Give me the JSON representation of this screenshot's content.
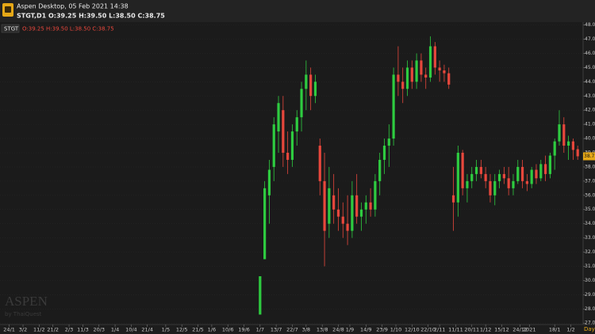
{
  "window": {
    "title": "Aspen Desktop, 05 Feb 2021 14:38",
    "info": "STGT,D1  O:39.25 H:39.50 L:38.50 C:38.75"
  },
  "watermark": {
    "brand": "ASPEN",
    "by": "by ThaiQuest"
  },
  "chart_data": {
    "type": "candlestick",
    "symbol": "STGT",
    "ohlc_text": "O:39.25 H:39.50 L:38.50 C:38.75",
    "timeframe": "Day",
    "up_color": "#2ecc40",
    "down_color": "#e8473c",
    "xlim": [
      0,
      253
    ],
    "xticks": [
      {
        "value": 4,
        "label": "24/1"
      },
      {
        "value": 10,
        "label": "3/2"
      },
      {
        "value": 17,
        "label": "11/2"
      },
      {
        "value": 23,
        "label": "21/2"
      },
      {
        "value": 30,
        "label": "2/3"
      },
      {
        "value": 36,
        "label": "11/3"
      },
      {
        "value": 43,
        "label": "20/3"
      },
      {
        "value": 50,
        "label": "1/4"
      },
      {
        "value": 57,
        "label": "10/4"
      },
      {
        "value": 64,
        "label": "21/4"
      },
      {
        "value": 72,
        "label": "1/5"
      },
      {
        "value": 79,
        "label": "12/5"
      },
      {
        "value": 86,
        "label": "21/5"
      },
      {
        "value": 92,
        "label": "1/6"
      },
      {
        "value": 99,
        "label": "10/6"
      },
      {
        "value": 106,
        "label": "19/6"
      },
      {
        "value": 113,
        "label": "1/7"
      },
      {
        "value": 120,
        "label": "13/7"
      },
      {
        "value": 127,
        "label": "22/7"
      },
      {
        "value": 133,
        "label": "3/8"
      },
      {
        "value": 140,
        "label": "13/8"
      },
      {
        "value": 147,
        "label": "24/8"
      },
      {
        "value": 152,
        "label": "1/9"
      },
      {
        "value": 159,
        "label": "14/9"
      },
      {
        "value": 166,
        "label": "23/9"
      },
      {
        "value": 172,
        "label": "1/10"
      },
      {
        "value": 179,
        "label": "12/10"
      },
      {
        "value": 186,
        "label": "22/10"
      },
      {
        "value": 191,
        "label": "2/11"
      },
      {
        "value": 198,
        "label": "11/11"
      },
      {
        "value": 205,
        "label": "20/11"
      },
      {
        "value": 211,
        "label": "1/12"
      },
      {
        "value": 218,
        "label": "15/12"
      },
      {
        "value": 226,
        "label": "24/12"
      },
      {
        "value": 230,
        "label": "2021"
      },
      {
        "value": 241,
        "label": "18/1"
      },
      {
        "value": 248,
        "label": "1/2"
      }
    ],
    "ylim": [
      26.9,
      48.2
    ],
    "yticks": [
      {
        "value": 27,
        "label": "27.00"
      },
      {
        "value": 28,
        "label": "28.00"
      },
      {
        "value": 29,
        "label": "29.00"
      },
      {
        "value": 30,
        "label": "30.00"
      },
      {
        "value": 31,
        "label": "31.00"
      },
      {
        "value": 32,
        "label": "32.00"
      },
      {
        "value": 33,
        "label": "33.00"
      },
      {
        "value": 34,
        "label": "34.00"
      },
      {
        "value": 35,
        "label": "35.00"
      },
      {
        "value": 36,
        "label": "36.00"
      },
      {
        "value": 37,
        "label": "37.00"
      },
      {
        "value": 38,
        "label": "38.00"
      },
      {
        "value": 39,
        "label": "39.00"
      },
      {
        "value": 40,
        "label": "40.00"
      },
      {
        "value": 41,
        "label": "41.00"
      },
      {
        "value": 42,
        "label": "42.00"
      },
      {
        "value": 43,
        "label": "43.00"
      },
      {
        "value": 44,
        "label": "44.00"
      },
      {
        "value": 45,
        "label": "45.00"
      },
      {
        "value": 46,
        "label": "46.00"
      },
      {
        "value": 47,
        "label": "47.00"
      },
      {
        "value": 48,
        "label": "48.00"
      }
    ],
    "grid": true,
    "x": [
      113,
      115,
      117,
      119,
      121,
      123,
      125,
      127,
      129,
      131,
      133,
      135,
      137,
      139,
      141,
      143,
      145,
      147,
      149,
      151,
      153,
      155,
      157,
      159,
      161,
      163,
      165,
      167,
      169,
      171,
      173,
      175,
      177,
      179,
      181,
      183,
      185,
      187,
      189,
      191,
      193,
      195,
      197,
      199,
      201,
      203,
      205,
      207,
      209,
      211,
      213,
      215,
      217,
      219,
      221,
      223,
      225,
      227,
      229,
      231,
      233,
      235,
      237,
      239,
      241,
      243,
      245,
      247,
      249,
      251
    ],
    "open": [
      27.6,
      31.5,
      36,
      38,
      40.5,
      42,
      39,
      38.5,
      40.5,
      41.5,
      43.5,
      44.5,
      43,
      39.5,
      37,
      34,
      36,
      35,
      34.5,
      34,
      33.5,
      36,
      34.5,
      35,
      35.5,
      35,
      37,
      38.5,
      39.5,
      40,
      44.5,
      44,
      43.5,
      45,
      44,
      45.5,
      44.5,
      44.3,
      46.5,
      45,
      44.8,
      44.6,
      36,
      35.5,
      39,
      36.5,
      37,
      37.5,
      38,
      37.5,
      37,
      36,
      37,
      37.5,
      37.2,
      36.5,
      37,
      38,
      37,
      36.8,
      37.8,
      37.2,
      38.2,
      37.5,
      38.8,
      39.8,
      41,
      39.5,
      39.8,
      39.25
    ],
    "high": [
      30.3,
      37,
      38.5,
      41.5,
      43,
      43,
      40.5,
      41,
      42,
      44,
      45.5,
      45,
      44.5,
      40,
      39,
      38,
      37.5,
      36.5,
      35.5,
      36,
      37,
      37.5,
      35.5,
      36,
      36.5,
      37.5,
      39,
      40,
      41,
      45,
      46.5,
      45,
      45.5,
      45.5,
      46,
      46,
      45,
      47.2,
      46.8,
      45.5,
      45.2,
      45,
      38,
      39.5,
      39.2,
      37.5,
      38,
      38.5,
      38.5,
      38,
      37.5,
      37.5,
      37.8,
      38,
      38,
      37.5,
      38.5,
      38.5,
      37.5,
      38,
      38.2,
      38.5,
      38.8,
      39,
      40,
      42,
      41.5,
      40.2,
      40,
      39.5
    ],
    "low": [
      27.6,
      31.5,
      34,
      37,
      39,
      38,
      37.5,
      38,
      39.5,
      40.5,
      42,
      42,
      42.5,
      36,
      31,
      33,
      34,
      33.5,
      33,
      32.5,
      33,
      34,
      33.5,
      34,
      34.5,
      34.5,
      36,
      37.5,
      38,
      39.5,
      43,
      42.5,
      43,
      43.5,
      43.5,
      44,
      43.5,
      44,
      44.5,
      44,
      44,
      43.5,
      33.5,
      34.5,
      36,
      35.5,
      36.5,
      37,
      37.2,
      36.5,
      35.5,
      35.3,
      36.5,
      36.8,
      36,
      36,
      36.8,
      36.5,
      36.3,
      36.5,
      36.8,
      37,
      37,
      37.2,
      37.8,
      39.5,
      39,
      38.5,
      38.5,
      38.5
    ],
    "close": [
      30.3,
      36.5,
      37.8,
      41,
      42.5,
      39,
      38.5,
      40.5,
      41.5,
      43.5,
      44.5,
      43,
      44,
      37,
      33.5,
      36.5,
      35,
      34.5,
      34,
      33.5,
      36,
      34.5,
      35,
      35.5,
      35,
      37,
      38.5,
      39.5,
      40,
      44.5,
      44,
      43.5,
      45,
      44,
      45.5,
      44.5,
      44.3,
      46.5,
      45,
      44.8,
      44.6,
      43.8,
      35.5,
      39,
      36.5,
      37,
      37.5,
      38,
      37.5,
      37,
      36,
      37,
      37.5,
      37.2,
      36.5,
      37,
      38,
      37,
      36.8,
      37.8,
      37.2,
      38.2,
      37.5,
      38.8,
      39.8,
      41,
      39.5,
      39.8,
      39.2,
      38.75
    ]
  }
}
